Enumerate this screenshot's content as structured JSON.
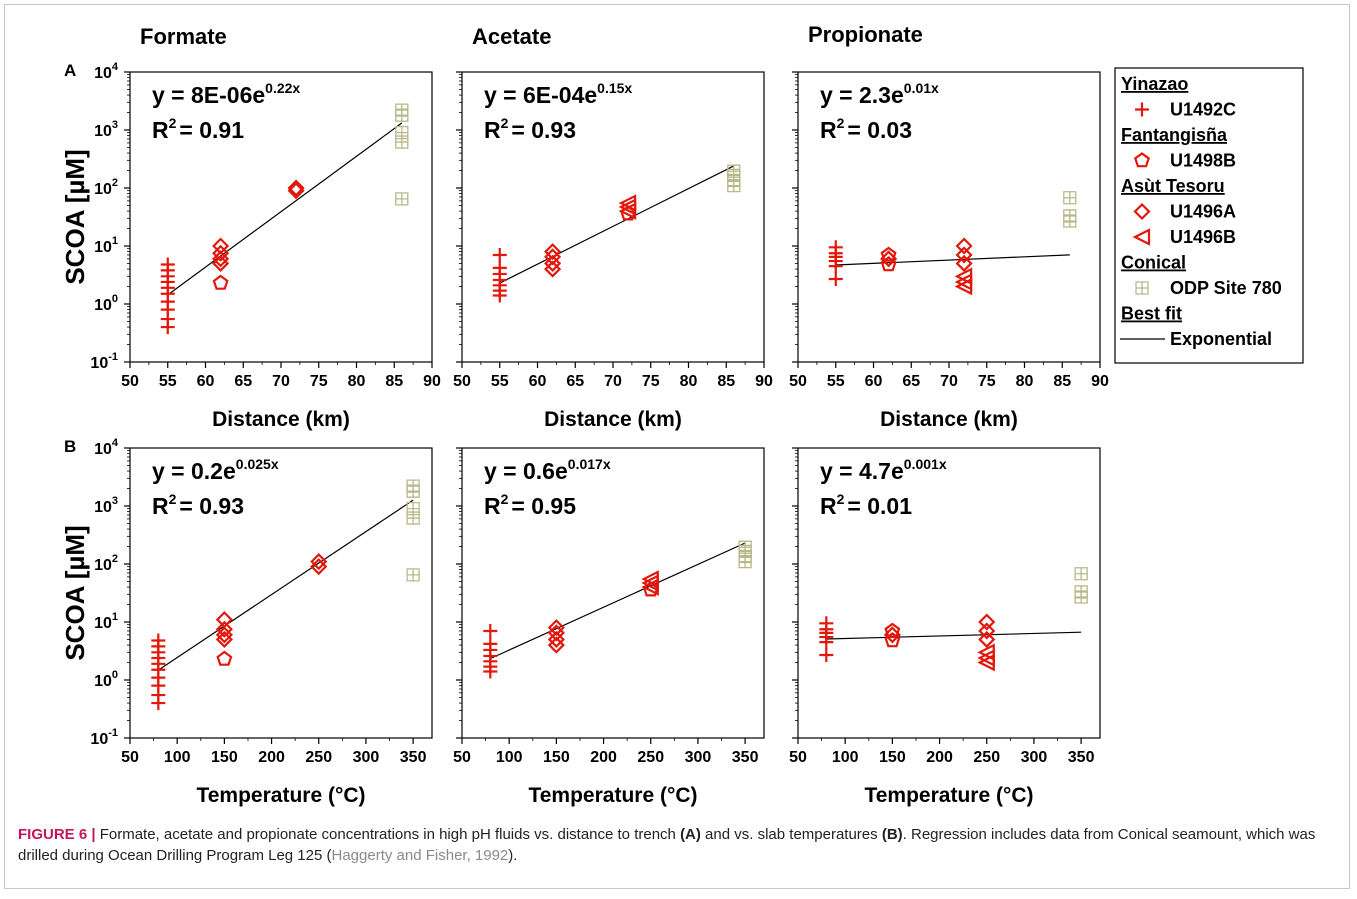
{
  "figure": {
    "caption": {
      "label": "FIGURE 6 |",
      "part1": " Formate, acetate and propionate concentrations in high pH fluids vs. distance to trench ",
      "a": "(A)",
      "part2": " and vs. slab temperatures ",
      "b": "(B)",
      "part3": ". Regression includes data from Conical seamount, which was drilled during Ocean Drilling Program Leg 125 (",
      "citation": "Haggerty and Fisher, 1992",
      "part4": ")."
    },
    "row_labels": [
      "A",
      "B"
    ],
    "column_titles": [
      "Formate",
      "Acetate",
      "Propionate"
    ],
    "ylabel": "SCOA [µM]",
    "y_tick_exponents": [
      "-1",
      "0",
      "1",
      "2",
      "3",
      "4"
    ],
    "colors": {
      "red": "#e3170a",
      "olive": "#b8b88a",
      "line": "#000000"
    }
  },
  "legend": [
    {
      "kind": "header",
      "text": "Yinazao"
    },
    {
      "kind": "entry",
      "marker": "plus",
      "text": "U1492C",
      "color": "#e3170a"
    },
    {
      "kind": "header",
      "text": "Fantangisña"
    },
    {
      "kind": "entry",
      "marker": "pentagon",
      "text": "U1498B",
      "color": "#e3170a"
    },
    {
      "kind": "header",
      "text": "Asùt Tesoru"
    },
    {
      "kind": "entry",
      "marker": "diamond",
      "text": "U1496A",
      "color": "#e3170a"
    },
    {
      "kind": "entry",
      "marker": "triangle-left",
      "text": "U1496B",
      "color": "#e3170a"
    },
    {
      "kind": "header",
      "text": "Conical"
    },
    {
      "kind": "entry",
      "marker": "square-plus",
      "text": "ODP Site 780",
      "color": "#b8b88a"
    },
    {
      "kind": "header",
      "text": "Best fit"
    },
    {
      "kind": "entry",
      "marker": "line",
      "text": "Exponential",
      "color": "#000000"
    }
  ],
  "chart_data": [
    {
      "type": "scatter",
      "row": "A",
      "title": "Formate",
      "xlabel": "Distance (km)",
      "ylabel": "SCOA [µM]",
      "yscale": "log",
      "xlim": [
        50,
        90
      ],
      "ylim": [
        0.1,
        10000
      ],
      "xticks": [
        50,
        55,
        60,
        65,
        70,
        75,
        80,
        85,
        90
      ],
      "annotation": {
        "eq_prefix": "y = 8E-06e",
        "eq_exp": "0.22x",
        "r2": "= 0.91"
      },
      "fit": {
        "a": 8e-06,
        "b": 0.22,
        "x_range": [
          55,
          86
        ]
      },
      "series": [
        {
          "name": "U1492C",
          "marker": "plus",
          "x": [
            55,
            55,
            55,
            55,
            55,
            55,
            55,
            55,
            55,
            55
          ],
          "y": [
            0.4,
            0.55,
            0.8,
            1.1,
            1.5,
            1.9,
            2.4,
            3.0,
            3.8,
            4.8
          ]
        },
        {
          "name": "U1498B",
          "marker": "pentagon",
          "x": [
            62
          ],
          "y": [
            2.3
          ]
        },
        {
          "name": "U1496A",
          "marker": "diamond",
          "x": [
            62,
            62,
            62,
            62,
            72,
            72
          ],
          "y": [
            5,
            6,
            7.5,
            10,
            90,
            100
          ]
        },
        {
          "name": "ODP Site 780",
          "marker": "square-plus",
          "x": [
            86,
            86,
            86,
            86,
            86
          ],
          "y": [
            65,
            620,
            900,
            1800,
            2200
          ]
        }
      ]
    },
    {
      "type": "scatter",
      "row": "A",
      "title": "Acetate",
      "xlabel": "Distance (km)",
      "ylabel": "SCOA [µM]",
      "yscale": "log",
      "xlim": [
        50,
        90
      ],
      "ylim": [
        0.1,
        10000
      ],
      "xticks": [
        50,
        55,
        60,
        65,
        70,
        75,
        80,
        85,
        90
      ],
      "annotation": {
        "eq_prefix": "y = 6E-04e",
        "eq_exp": "0.15x",
        "r2": "= 0.93"
      },
      "fit": {
        "a": 0.0006,
        "b": 0.15,
        "x_range": [
          55,
          86
        ]
      },
      "series": [
        {
          "name": "U1492C",
          "marker": "plus",
          "x": [
            55,
            55,
            55,
            55,
            55,
            55,
            55
          ],
          "y": [
            1.4,
            1.7,
            2.1,
            2.6,
            3.3,
            4.2,
            7.0
          ]
        },
        {
          "name": "U1496A",
          "marker": "diamond",
          "x": [
            62,
            62,
            62,
            62
          ],
          "y": [
            4,
            5,
            6.5,
            8
          ]
        },
        {
          "name": "U1496B",
          "marker": "triangle-left",
          "x": [
            72,
            72,
            72
          ],
          "y": [
            40,
            47,
            55
          ]
        },
        {
          "name": "U1498B",
          "marker": "pentagon",
          "x": [
            72
          ],
          "y": [
            36
          ]
        },
        {
          "name": "ODP Site 780",
          "marker": "square-plus",
          "x": [
            86,
            86,
            86,
            86
          ],
          "y": [
            110,
            135,
            165,
            195
          ]
        }
      ]
    },
    {
      "type": "scatter",
      "row": "A",
      "title": "Propionate",
      "xlabel": "Distance (km)",
      "ylabel": "SCOA [µM]",
      "yscale": "log",
      "xlim": [
        50,
        90
      ],
      "ylim": [
        0.1,
        10000
      ],
      "xticks": [
        50,
        55,
        60,
        65,
        70,
        75,
        80,
        85,
        90
      ],
      "annotation": {
        "eq_prefix": "y = 2.3e",
        "eq_exp": "0.01x",
        "r2": "= 0.03"
      },
      "fit": {
        "a": 2.3,
        "b": 0.013,
        "x_range": [
          55,
          86
        ]
      },
      "series": [
        {
          "name": "U1492C",
          "marker": "plus",
          "x": [
            55,
            55,
            55,
            55,
            55,
            55
          ],
          "y": [
            2.7,
            4.5,
            5.5,
            6.5,
            7.5,
            9.5
          ]
        },
        {
          "name": "U1498B",
          "marker": "pentagon",
          "x": [
            62,
            62
          ],
          "y": [
            4.8,
            7.0
          ]
        },
        {
          "name": "U1496A",
          "marker": "diamond",
          "x": [
            62,
            72,
            72,
            72
          ],
          "y": [
            6,
            5,
            7,
            10
          ]
        },
        {
          "name": "U1496B",
          "marker": "triangle-left",
          "x": [
            72,
            72,
            72
          ],
          "y": [
            2,
            2.4,
            3
          ]
        },
        {
          "name": "ODP Site 780",
          "marker": "square-plus",
          "x": [
            86,
            86,
            86
          ],
          "y": [
            27,
            33,
            68
          ]
        }
      ]
    },
    {
      "type": "scatter",
      "row": "B",
      "title": "",
      "xlabel": "Temperature (°C)",
      "ylabel": "SCOA [µM]",
      "yscale": "log",
      "xlim": [
        50,
        370
      ],
      "ylim": [
        0.1,
        10000
      ],
      "xticks": [
        50,
        100,
        150,
        200,
        250,
        300,
        350
      ],
      "annotation": {
        "eq_prefix": "y = 0.2e",
        "eq_exp": "0.025x",
        "r2": "= 0.93"
      },
      "fit": {
        "a": 0.2,
        "b": 0.025,
        "x_range": [
          80,
          350
        ]
      },
      "series": [
        {
          "name": "U1492C",
          "marker": "plus",
          "x": [
            80,
            80,
            80,
            80,
            80,
            80,
            80,
            80,
            80,
            80
          ],
          "y": [
            0.4,
            0.55,
            0.8,
            1.1,
            1.5,
            1.9,
            2.4,
            3.0,
            3.8,
            4.8
          ]
        },
        {
          "name": "U1498B",
          "marker": "pentagon",
          "x": [
            150
          ],
          "y": [
            2.3
          ]
        },
        {
          "name": "U1496A",
          "marker": "diamond",
          "x": [
            150,
            150,
            150,
            150,
            250,
            250
          ],
          "y": [
            5,
            6,
            7.5,
            11,
            90,
            110
          ]
        },
        {
          "name": "ODP Site 780",
          "marker": "square-plus",
          "x": [
            350,
            350,
            350,
            350,
            350
          ],
          "y": [
            65,
            620,
            900,
            1800,
            2200
          ]
        }
      ]
    },
    {
      "type": "scatter",
      "row": "B",
      "title": "",
      "xlabel": "Temperature (°C)",
      "ylabel": "SCOA [µM]",
      "yscale": "log",
      "xlim": [
        50,
        370
      ],
      "ylim": [
        0.1,
        10000
      ],
      "xticks": [
        50,
        100,
        150,
        200,
        250,
        300,
        350
      ],
      "annotation": {
        "eq_prefix": "y = 0.6e",
        "eq_exp": "0.017x",
        "r2": "= 0.95"
      },
      "fit": {
        "a": 0.6,
        "b": 0.017,
        "x_range": [
          80,
          350
        ]
      },
      "series": [
        {
          "name": "U1492C",
          "marker": "plus",
          "x": [
            80,
            80,
            80,
            80,
            80,
            80,
            80
          ],
          "y": [
            1.4,
            1.7,
            2.1,
            2.6,
            3.3,
            4.2,
            7.0
          ]
        },
        {
          "name": "U1496A",
          "marker": "diamond",
          "x": [
            150,
            150,
            150,
            150
          ],
          "y": [
            4,
            5,
            6.5,
            8
          ]
        },
        {
          "name": "U1496B",
          "marker": "triangle-left",
          "x": [
            250,
            250,
            250
          ],
          "y": [
            40,
            47,
            55
          ]
        },
        {
          "name": "U1498B",
          "marker": "pentagon",
          "x": [
            250
          ],
          "y": [
            36
          ]
        },
        {
          "name": "ODP Site 780",
          "marker": "square-plus",
          "x": [
            350,
            350,
            350,
            350
          ],
          "y": [
            110,
            135,
            165,
            195
          ]
        }
      ]
    },
    {
      "type": "scatter",
      "row": "B",
      "title": "",
      "xlabel": "Temperature (°C)",
      "ylabel": "SCOA [µM]",
      "yscale": "log",
      "xlim": [
        50,
        370
      ],
      "ylim": [
        0.1,
        10000
      ],
      "xticks": [
        50,
        100,
        150,
        200,
        250,
        300,
        350
      ],
      "annotation": {
        "eq_prefix": "y = 4.7e",
        "eq_exp": "0.001x",
        "r2": "= 0.01"
      },
      "fit": {
        "a": 4.7,
        "b": 0.001,
        "x_range": [
          80,
          350
        ]
      },
      "series": [
        {
          "name": "U1492C",
          "marker": "plus",
          "x": [
            80,
            80,
            80,
            80,
            80,
            80
          ],
          "y": [
            2.7,
            4.5,
            5.5,
            6.5,
            7.5,
            9.5
          ]
        },
        {
          "name": "U1498B",
          "marker": "pentagon",
          "x": [
            150,
            150
          ],
          "y": [
            4.8,
            7.0
          ]
        },
        {
          "name": "U1496A",
          "marker": "diamond",
          "x": [
            150,
            250,
            250,
            250
          ],
          "y": [
            6,
            5,
            7,
            10
          ]
        },
        {
          "name": "U1496B",
          "marker": "triangle-left",
          "x": [
            250,
            250,
            250
          ],
          "y": [
            2,
            2.4,
            3
          ]
        },
        {
          "name": "ODP Site 780",
          "marker": "square-plus",
          "x": [
            350,
            350,
            350
          ],
          "y": [
            27,
            33,
            68
          ]
        }
      ]
    }
  ]
}
